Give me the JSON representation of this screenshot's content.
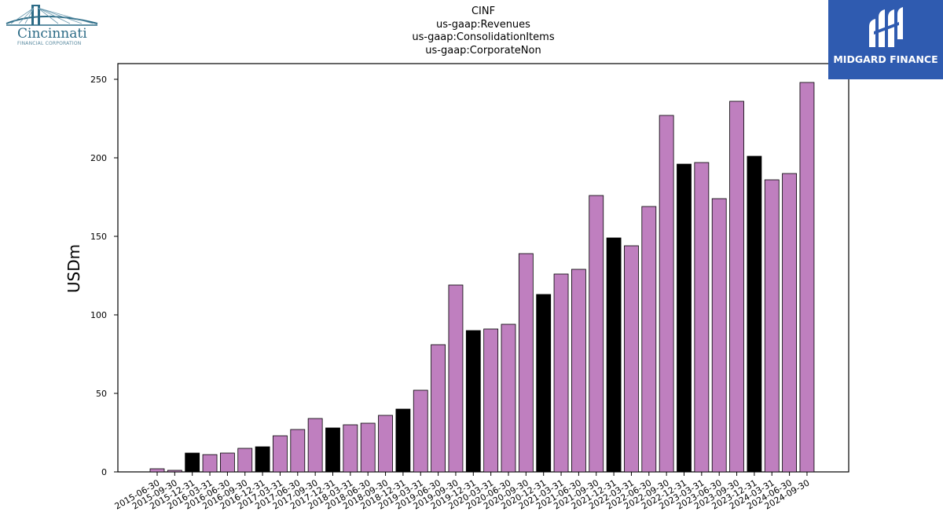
{
  "titles": [
    "CINF",
    "us-gaap:Revenues",
    "us-gaap:ConsolidationItems",
    "us-gaap:CorporateNon"
  ],
  "logos": {
    "left": {
      "name": "Cincinnati",
      "subtitle": "FINANCIAL CORPORATION",
      "color": "#2c6b86"
    },
    "right": {
      "name": "MIDGARD FINANCE",
      "background": "#2f5bb0"
    }
  },
  "chart_data": {
    "type": "bar",
    "ylabel": "USDm",
    "xlabel": "",
    "ylim": [
      0,
      260
    ],
    "yticks": [
      0,
      50,
      100,
      150,
      200,
      250
    ],
    "colors": {
      "default": "#bf7fbf",
      "highlight": "#000000"
    },
    "categories": [
      "2015-06-30",
      "2015-09-30",
      "2015-12-31",
      "2016-03-31",
      "2016-06-30",
      "2016-09-30",
      "2016-12-31",
      "2017-03-31",
      "2017-06-30",
      "2017-09-30",
      "2017-12-31",
      "2018-03-31",
      "2018-06-30",
      "2018-09-30",
      "2018-12-31",
      "2019-03-31",
      "2019-06-30",
      "2019-09-30",
      "2019-12-31",
      "2020-03-31",
      "2020-06-30",
      "2020-09-30",
      "2020-12-31",
      "2021-03-31",
      "2021-06-30",
      "2021-09-30",
      "2021-12-31",
      "2022-03-31",
      "2022-06-30",
      "2022-09-30",
      "2022-12-31",
      "2023-03-31",
      "2023-06-30",
      "2023-09-30",
      "2023-12-31",
      "2024-03-31",
      "2024-06-30",
      "2024-09-30"
    ],
    "values": [
      2,
      1,
      12,
      11,
      12,
      15,
      16,
      23,
      27,
      34,
      28,
      30,
      31,
      36,
      40,
      52,
      81,
      119,
      90,
      91,
      94,
      139,
      113,
      126,
      129,
      176,
      149,
      144,
      169,
      227,
      196,
      197,
      174,
      236,
      201,
      186,
      190,
      248
    ],
    "highlight": [
      false,
      false,
      true,
      false,
      false,
      false,
      true,
      false,
      false,
      false,
      true,
      false,
      false,
      false,
      true,
      false,
      false,
      false,
      true,
      false,
      false,
      false,
      true,
      false,
      false,
      false,
      true,
      false,
      false,
      false,
      true,
      false,
      false,
      false,
      true,
      false,
      false,
      false
    ]
  }
}
